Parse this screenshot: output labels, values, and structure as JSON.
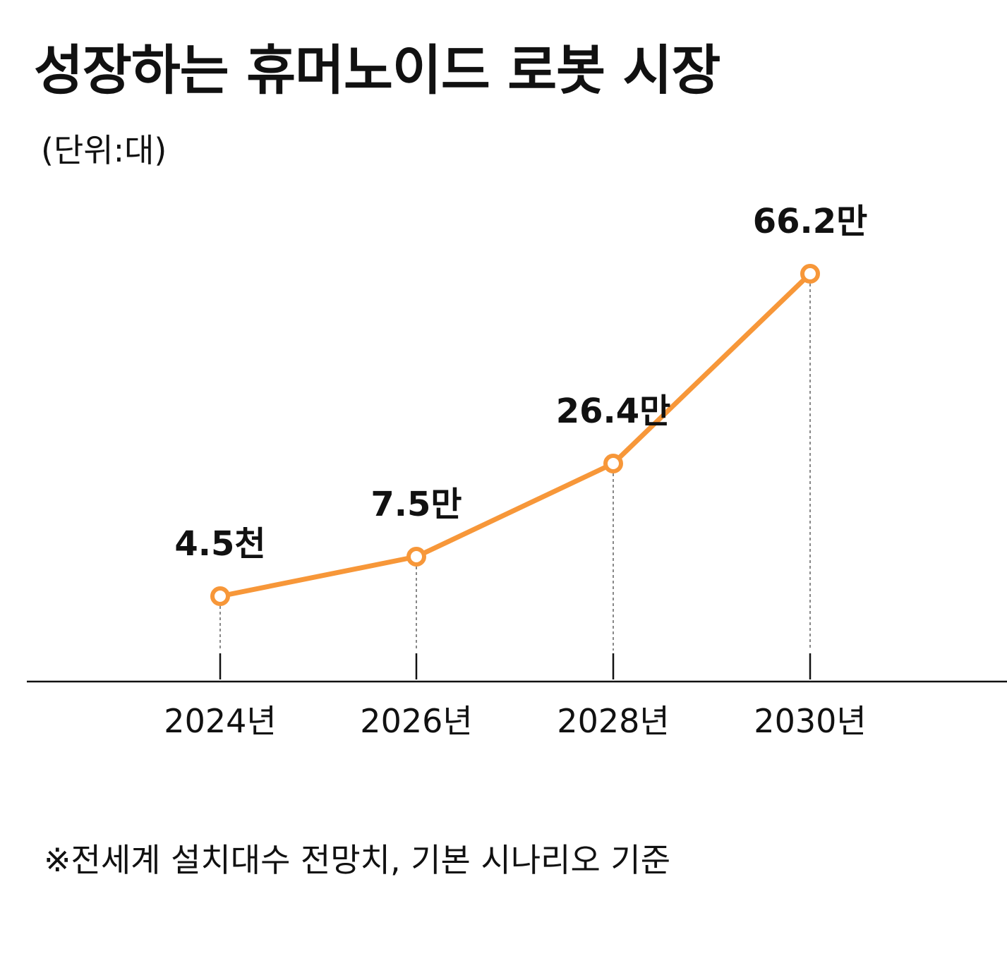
{
  "header": {
    "title": "성장하는 휴머노이드 로봇 시장",
    "unit": "(단위:대)"
  },
  "footnote": "※전세계 설치대수 전망치, 기본 시나리오 기준",
  "colors": {
    "line": "#F79739",
    "text": "#111111",
    "axis": "#111111",
    "guide": "#888888"
  },
  "chart_data": {
    "type": "line",
    "categories": [
      "2024년",
      "2026년",
      "2028년",
      "2030년"
    ],
    "series": [
      {
        "values": [
          4500,
          75000,
          264000,
          662000
        ],
        "labels": [
          "4.5천",
          "7.5만",
          "26.4만",
          "66.2만"
        ]
      }
    ],
    "grid": false,
    "legend": "none",
    "title": "성장하는 휴머노이드 로봇 시장",
    "ylabel": "(단위:대)"
  }
}
